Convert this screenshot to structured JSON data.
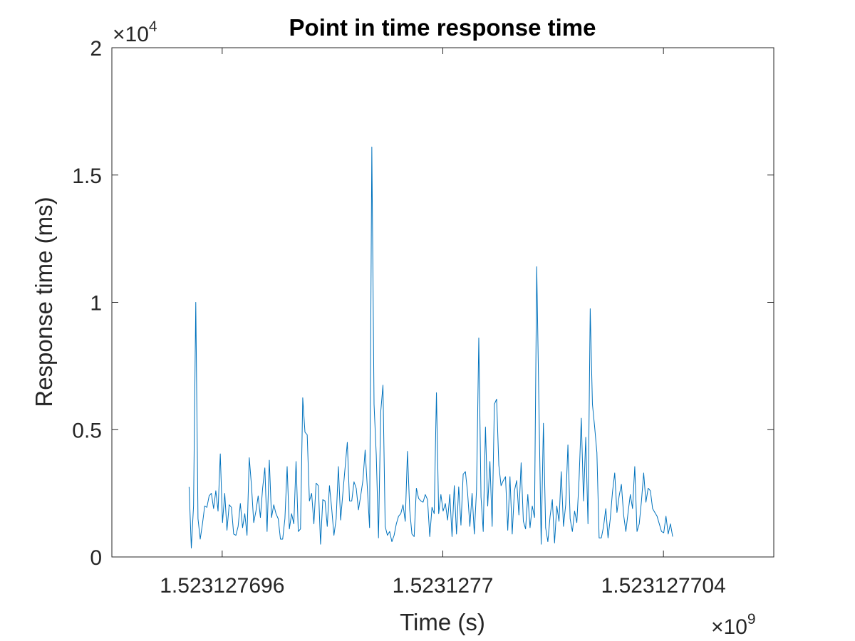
{
  "chart_data": {
    "type": "line",
    "title": "Point in time response time",
    "xlabel": "Time (s)",
    "ylabel": "Response time (ms)",
    "x_multiplier": {
      "symbol": "×",
      "base": "10",
      "exponent": "9"
    },
    "y_multiplier": {
      "symbol": "×",
      "base": "10",
      "exponent": "4"
    },
    "x_ticks": [
      1523127696,
      1523127700,
      1523127704
    ],
    "x_tick_labels": [
      "1.523127696",
      "1.5231277",
      "1.523127704"
    ],
    "y_ticks": [
      0,
      5000,
      10000,
      15000,
      20000
    ],
    "y_tick_labels": [
      "0",
      "0.5",
      "1",
      "1.5",
      "2"
    ],
    "xlim": [
      1523127694,
      1523127706
    ],
    "ylim": [
      0,
      20000
    ],
    "grid": false,
    "box": true,
    "series": [
      {
        "color": "#0072BD",
        "x_start": 1523127695.4,
        "x_step": 0.0404,
        "values": [
          2750,
          350,
          2000,
          10000,
          1500,
          700,
          1300,
          2000,
          1950,
          2400,
          2500,
          1900,
          2600,
          1800,
          4050,
          1350,
          2500,
          1050,
          2050,
          1950,
          900,
          850,
          1200,
          2100,
          1150,
          1700,
          850,
          3900,
          2800,
          1350,
          1800,
          2400,
          1550,
          2700,
          3500,
          1000,
          3800,
          1550,
          2050,
          1700,
          1500,
          700,
          700,
          1500,
          3550,
          1100,
          1700,
          1300,
          3750,
          1000,
          1100,
          6250,
          4900,
          4800,
          2200,
          2500,
          1300,
          2900,
          2800,
          500,
          2250,
          2200,
          1200,
          2800,
          1900,
          850,
          1500,
          3550,
          1450,
          2500,
          3500,
          4500,
          2200,
          2200,
          2950,
          2700,
          1850,
          2400,
          3000,
          4200,
          2700,
          1150,
          16100,
          6000,
          4000,
          750,
          5700,
          6750,
          1200,
          850,
          1000,
          600,
          850,
          1300,
          1600,
          1700,
          2050,
          1400,
          4150,
          1850,
          900,
          800,
          2700,
          2300,
          2200,
          2150,
          2450,
          2250,
          800,
          1950,
          1700,
          6450,
          1700,
          2450,
          1800,
          2100,
          1450,
          2450,
          800,
          2800,
          900,
          2750,
          1250,
          3250,
          3350,
          2500,
          1200,
          2500,
          900,
          2650,
          8600,
          2350,
          1000,
          5100,
          2000,
          3750,
          1200,
          6000,
          6200,
          3600,
          2800,
          3000,
          3150,
          1050,
          3150,
          900,
          2600,
          3000,
          1650,
          3700,
          1400,
          1100,
          2450,
          1150,
          2000,
          1550,
          11400,
          5900,
          500,
          5250,
          1150,
          600,
          1600,
          2250,
          550,
          2000,
          1400,
          3350,
          1200,
          2050,
          4400,
          1500,
          1000,
          1800,
          1350,
          3050,
          5450,
          2200,
          4700,
          1300,
          9750,
          6000,
          5100,
          4100,
          750,
          750,
          1200,
          1900,
          750,
          1500,
          2550,
          3300,
          1750,
          2400,
          2850,
          1650,
          1000,
          1750,
          2450,
          1900,
          3550,
          1000,
          1300,
          2200,
          3300,
          2150,
          2700,
          2600,
          1900,
          1750,
          1600,
          1300,
          1000,
          950,
          1600,
          900,
          1300,
          800
        ]
      }
    ]
  }
}
